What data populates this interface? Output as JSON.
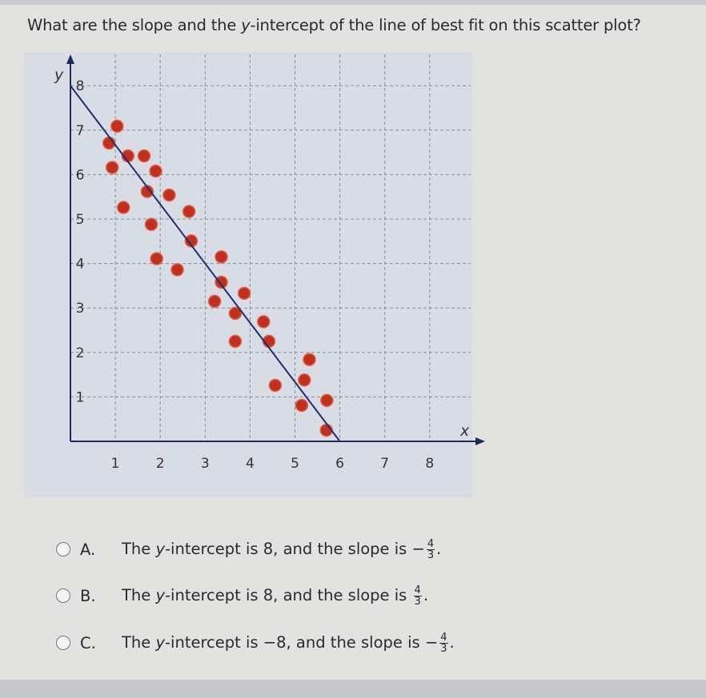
{
  "question": {
    "prefix": "What are the slope and the ",
    "var": "y",
    "suffix": "-intercept of the line of best fit on this scatter plot?"
  },
  "chart_data": {
    "type": "scatter",
    "xlabel": "x",
    "ylabel": "y",
    "xlim": [
      0,
      8.8
    ],
    "ylim": [
      0,
      8.6
    ],
    "x_ticks": [
      "1",
      "2",
      "3",
      "4",
      "5",
      "6",
      "7",
      "8"
    ],
    "y_ticks": [
      "1",
      "2",
      "3",
      "4",
      "5",
      "6",
      "7",
      "8"
    ],
    "grid": true,
    "point_color": "#c0301e",
    "line_color": "#1f2f6e",
    "points": [
      [
        1.04,
        7.09
      ],
      [
        0.86,
        6.71
      ],
      [
        1.28,
        6.42
      ],
      [
        1.64,
        6.42
      ],
      [
        0.93,
        6.16
      ],
      [
        1.9,
        6.08
      ],
      [
        1.71,
        5.62
      ],
      [
        2.2,
        5.54
      ],
      [
        1.18,
        5.26
      ],
      [
        2.64,
        5.17
      ],
      [
        1.8,
        4.88
      ],
      [
        2.69,
        4.51
      ],
      [
        3.36,
        4.15
      ],
      [
        1.92,
        4.11
      ],
      [
        2.38,
        3.86
      ],
      [
        3.36,
        3.58
      ],
      [
        3.87,
        3.33
      ],
      [
        3.21,
        3.15
      ],
      [
        3.67,
        2.88
      ],
      [
        4.3,
        2.69
      ],
      [
        3.67,
        2.25
      ],
      [
        4.42,
        2.25
      ],
      [
        5.32,
        1.84
      ],
      [
        5.21,
        1.38
      ],
      [
        4.56,
        1.26
      ],
      [
        5.71,
        0.92
      ],
      [
        5.15,
        0.81
      ],
      [
        5.7,
        0.25
      ]
    ],
    "best_fit_line": {
      "start": [
        0,
        8
      ],
      "end": [
        6,
        0
      ]
    }
  },
  "options": [
    {
      "letter": "A.",
      "text_pre": "The ",
      "var": "y",
      "text_mid": "-intercept is 8, and the slope is ",
      "sign": "−",
      "num": "4",
      "den": "3",
      "end": "."
    },
    {
      "letter": "B.",
      "text_pre": "The ",
      "var": "y",
      "text_mid": "-intercept is 8, and the slope is ",
      "sign": "",
      "num": "4",
      "den": "3",
      "end": "."
    },
    {
      "letter": "C.",
      "text_pre": "The ",
      "var": "y",
      "text_mid": "-intercept is −8, and the slope is ",
      "sign": "−",
      "num": "4",
      "den": "3",
      "end": "."
    }
  ]
}
